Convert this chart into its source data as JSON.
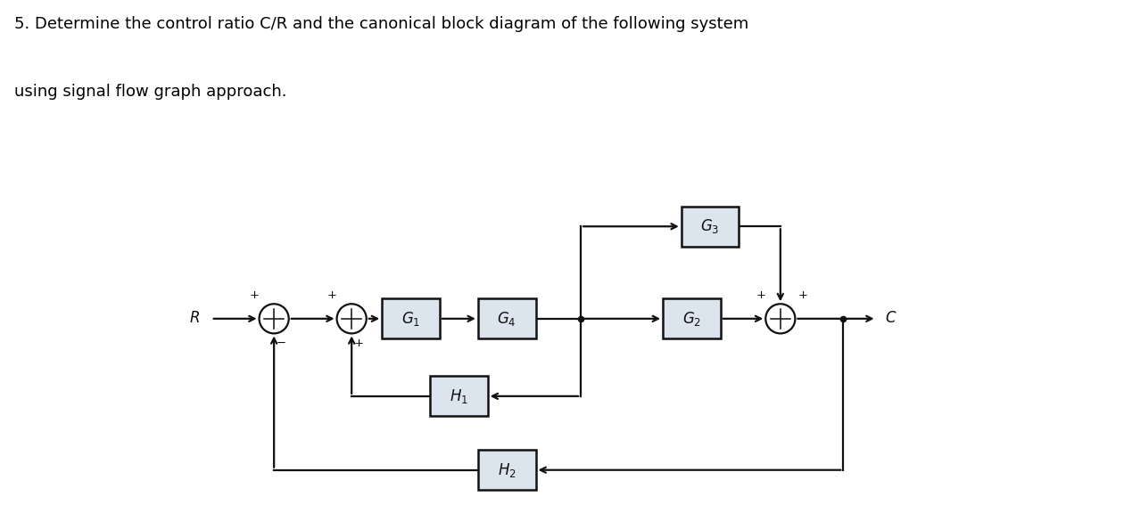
{
  "title_line1": "5. Determine the control ratio C/R and the canonical block diagram of the following system",
  "title_line2": "using signal flow graph approach.",
  "title_fontsize": 13.0,
  "title_color": "#000000",
  "bg_color": "#ffffff",
  "box_bg": "#dce5ee",
  "box_border": "#111111",
  "line_color": "#111111",
  "text_color": "#111111",
  "figsize": [
    12.69,
    5.85
  ],
  "dpi": 100,
  "bottom_bar_color": "#c8daea"
}
